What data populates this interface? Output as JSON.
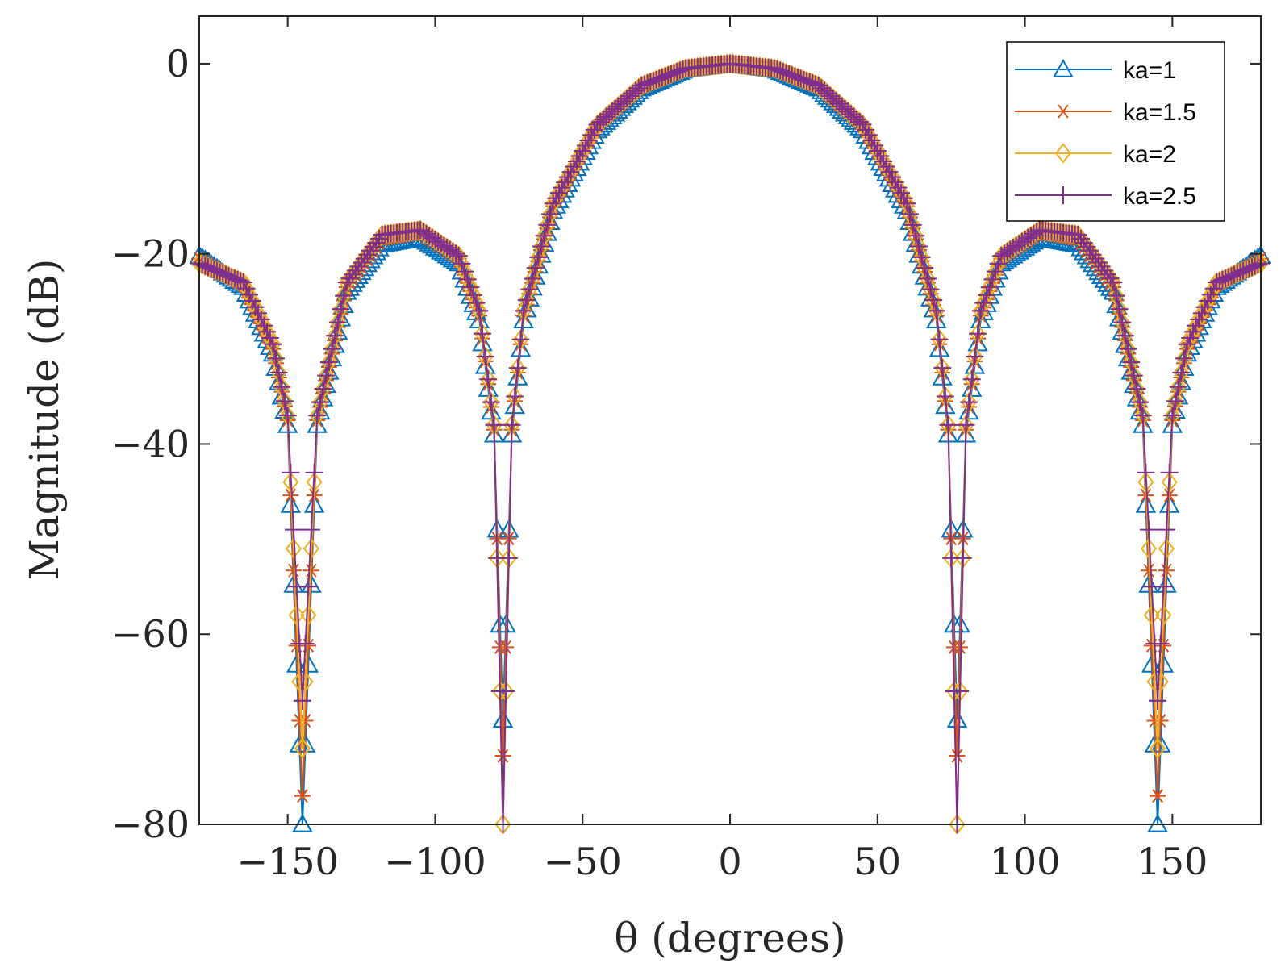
{
  "chart_data": {
    "type": "line",
    "xlabel": "θ (degrees)",
    "ylabel": "Magnitude (dB)",
    "xlim": [
      -180,
      180
    ],
    "ylim": [
      -80,
      5
    ],
    "xticks": [
      -150,
      -100,
      -50,
      0,
      50,
      100,
      150
    ],
    "xtick_labels": [
      "−150",
      "−100",
      "−50",
      "0",
      "50",
      "100",
      "150"
    ],
    "yticks": [
      0,
      -20,
      -40,
      -60,
      -80
    ],
    "ytick_labels": [
      "0",
      "−20",
      "−40",
      "−60",
      "−80"
    ],
    "grid": false,
    "legend_position": "top-right",
    "x_step": 1,
    "series": [
      {
        "name": "ka=1",
        "color": "#0072BD",
        "marker": "triangle",
        "points": [
          [
            -180,
            -20.2
          ],
          [
            -165,
            -23.5
          ],
          [
            -155,
            -30.5
          ],
          [
            -150,
            -38.0
          ],
          [
            -145,
            -80
          ],
          [
            -140,
            -38.0
          ],
          [
            -130,
            -24.0
          ],
          [
            -118,
            -19.0
          ],
          [
            -105,
            -18.3
          ],
          [
            -92,
            -21.0
          ],
          [
            -85,
            -27.0
          ],
          [
            -80,
            -39.0
          ],
          [
            -77,
            -69.0
          ],
          [
            -74,
            -39.0
          ],
          [
            -70,
            -27.0
          ],
          [
            -60,
            -15.5
          ],
          [
            -45,
            -7.0
          ],
          [
            -30,
            -2.6
          ],
          [
            -15,
            -0.6
          ],
          [
            0,
            0
          ],
          [
            15,
            -0.6
          ],
          [
            30,
            -2.6
          ],
          [
            45,
            -7.0
          ],
          [
            60,
            -15.5
          ],
          [
            70,
            -27.0
          ],
          [
            74,
            -39.0
          ],
          [
            77,
            -69.0
          ],
          [
            80,
            -39.0
          ],
          [
            85,
            -27.0
          ],
          [
            92,
            -21.0
          ],
          [
            105,
            -18.3
          ],
          [
            118,
            -19.0
          ],
          [
            130,
            -24.0
          ],
          [
            140,
            -38.0
          ],
          [
            145,
            -80
          ],
          [
            150,
            -38.0
          ],
          [
            155,
            -30.5
          ],
          [
            165,
            -23.5
          ],
          [
            180,
            -20.2
          ]
        ]
      },
      {
        "name": "ka=1.5",
        "color": "#D95319",
        "marker": "asterisk",
        "points": [
          [
            -180,
            -20.5
          ],
          [
            -165,
            -23.3
          ],
          [
            -155,
            -30.0
          ],
          [
            -150,
            -37.5
          ],
          [
            -145,
            -77.0
          ],
          [
            -140,
            -37.5
          ],
          [
            -130,
            -23.5
          ],
          [
            -118,
            -18.5
          ],
          [
            -105,
            -17.8
          ],
          [
            -92,
            -20.5
          ],
          [
            -85,
            -26.5
          ],
          [
            -80,
            -38.5
          ],
          [
            -77,
            -72.8
          ],
          [
            -74,
            -38.5
          ],
          [
            -70,
            -26.5
          ],
          [
            -60,
            -15.0
          ],
          [
            -45,
            -6.6
          ],
          [
            -30,
            -2.4
          ],
          [
            -15,
            -0.5
          ],
          [
            0,
            0
          ],
          [
            15,
            -0.5
          ],
          [
            30,
            -2.4
          ],
          [
            45,
            -6.6
          ],
          [
            60,
            -15.0
          ],
          [
            70,
            -26.5
          ],
          [
            74,
            -38.5
          ],
          [
            77,
            -72.8
          ],
          [
            80,
            -38.5
          ],
          [
            85,
            -26.5
          ],
          [
            92,
            -20.5
          ],
          [
            105,
            -17.8
          ],
          [
            118,
            -18.5
          ],
          [
            130,
            -23.5
          ],
          [
            140,
            -37.5
          ],
          [
            145,
            -77.0
          ],
          [
            150,
            -37.5
          ],
          [
            155,
            -30.0
          ],
          [
            165,
            -23.3
          ],
          [
            180,
            -20.5
          ]
        ]
      },
      {
        "name": "ka=2",
        "color": "#EDB120",
        "marker": "diamond",
        "points": [
          [
            -180,
            -21.0
          ],
          [
            -165,
            -23.0
          ],
          [
            -155,
            -29.5
          ],
          [
            -150,
            -37.0
          ],
          [
            -145,
            -72.0
          ],
          [
            -140,
            -37.0
          ],
          [
            -130,
            -23.0
          ],
          [
            -118,
            -18.0
          ],
          [
            -105,
            -17.5
          ],
          [
            -92,
            -20.2
          ],
          [
            -85,
            -26.0
          ],
          [
            -80,
            -38.0
          ],
          [
            -77,
            -80
          ],
          [
            -74,
            -38.0
          ],
          [
            -70,
            -26.0
          ],
          [
            -60,
            -14.7
          ],
          [
            -45,
            -6.4
          ],
          [
            -30,
            -2.3
          ],
          [
            -15,
            -0.5
          ],
          [
            0,
            0
          ],
          [
            15,
            -0.5
          ],
          [
            30,
            -2.3
          ],
          [
            45,
            -6.4
          ],
          [
            60,
            -14.7
          ],
          [
            70,
            -26.0
          ],
          [
            74,
            -38.0
          ],
          [
            77,
            -80
          ],
          [
            80,
            -38.0
          ],
          [
            85,
            -26.0
          ],
          [
            92,
            -20.2
          ],
          [
            105,
            -17.5
          ],
          [
            118,
            -18.0
          ],
          [
            130,
            -23.0
          ],
          [
            140,
            -37.0
          ],
          [
            145,
            -72.0
          ],
          [
            150,
            -37.0
          ],
          [
            155,
            -29.5
          ],
          [
            165,
            -23.0
          ],
          [
            180,
            -21.0
          ]
        ]
      },
      {
        "name": "ka=2.5",
        "color": "#7E2F8E",
        "marker": "plus",
        "points": [
          [
            -180,
            -21.0
          ],
          [
            -165,
            -23.0
          ],
          [
            -155,
            -29.5
          ],
          [
            -150,
            -37.0
          ],
          [
            -145,
            -67.0
          ],
          [
            -140,
            -37.0
          ],
          [
            -130,
            -23.0
          ],
          [
            -118,
            -18.0
          ],
          [
            -105,
            -17.5
          ],
          [
            -92,
            -20.2
          ],
          [
            -85,
            -26.0
          ],
          [
            -80,
            -38.0
          ],
          [
            -77,
            -80
          ],
          [
            -74,
            -38.0
          ],
          [
            -70,
            -26.0
          ],
          [
            -60,
            -14.7
          ],
          [
            -45,
            -6.4
          ],
          [
            -30,
            -2.3
          ],
          [
            -15,
            -0.5
          ],
          [
            0,
            0
          ],
          [
            15,
            -0.5
          ],
          [
            30,
            -2.3
          ],
          [
            45,
            -6.4
          ],
          [
            60,
            -14.7
          ],
          [
            70,
            -26.0
          ],
          [
            74,
            -38.0
          ],
          [
            77,
            -80
          ],
          [
            80,
            -38.0
          ],
          [
            85,
            -26.0
          ],
          [
            92,
            -20.2
          ],
          [
            105,
            -17.5
          ],
          [
            118,
            -18.0
          ],
          [
            130,
            -23.0
          ],
          [
            140,
            -37.0
          ],
          [
            145,
            -67.0
          ],
          [
            150,
            -37.0
          ],
          [
            155,
            -29.5
          ],
          [
            165,
            -23.0
          ],
          [
            180,
            -21.0
          ]
        ]
      }
    ]
  }
}
